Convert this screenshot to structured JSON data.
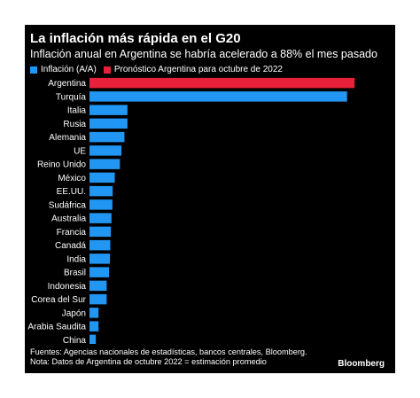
{
  "title": "La inflación más rápida en el G20",
  "subtitle": "Inflación anual en Argentina se habría acelerado a 88% el mes pasado",
  "legend": [
    {
      "label": "Inflación (A/A)",
      "color": "#2196f3"
    },
    {
      "label": "Pronóstico Argentina para octubre de 2022",
      "color": "#e8213a"
    }
  ],
  "chart_data": {
    "type": "bar",
    "orientation": "horizontal",
    "categories": [
      "Argentina",
      "Turquía",
      "Italia",
      "Rusia",
      "Alemania",
      "UE",
      "Reino Unido",
      "México",
      "EE.UU.",
      "Sudáfrica",
      "Australia",
      "Francia",
      "Canadá",
      "India",
      "Brasil",
      "Indonesia",
      "Corea del Sur",
      "Japón",
      "Arabia Saudita",
      "China"
    ],
    "values": [
      88,
      85.5,
      12.6,
      12.6,
      11.6,
      10.6,
      10.1,
      8.4,
      7.7,
      7.6,
      7.3,
      7.1,
      6.9,
      6.8,
      6.5,
      5.7,
      5.7,
      3.0,
      3.0,
      2.1
    ],
    "colors": [
      "#e8213a",
      "#2196f3",
      "#2196f3",
      "#2196f3",
      "#2196f3",
      "#2196f3",
      "#2196f3",
      "#2196f3",
      "#2196f3",
      "#2196f3",
      "#2196f3",
      "#2196f3",
      "#2196f3",
      "#2196f3",
      "#2196f3",
      "#2196f3",
      "#2196f3",
      "#2196f3",
      "#2196f3",
      "#2196f3"
    ],
    "xticks": [
      0,
      10,
      20,
      30,
      40,
      50,
      60,
      70,
      80,
      90
    ],
    "xlim": [
      0,
      90
    ],
    "grid": false
  },
  "footer": {
    "sources": "Fuentes: Agencias nacionales de estadísticas, bancos centrales, Bloomberg.",
    "note": "Nota: Datos de Argentina de octubre 2022 = estimación promedio"
  },
  "brand": "Bloomberg"
}
